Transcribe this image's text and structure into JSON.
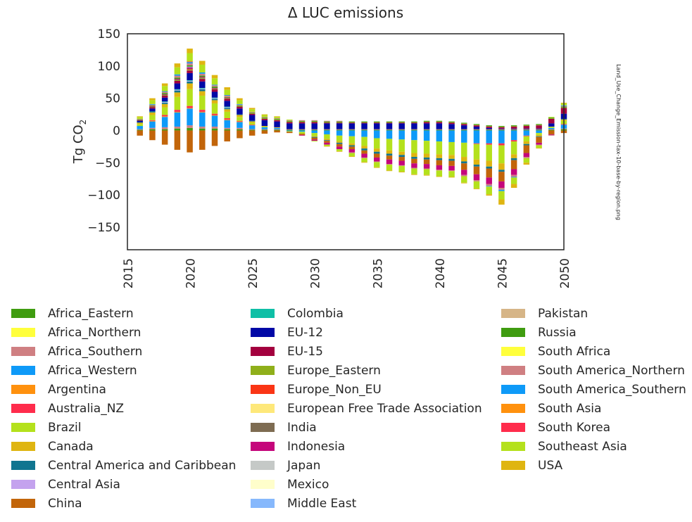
{
  "chart_data": {
    "type": "bar",
    "stacked": true,
    "title": "Δ LUC emissions",
    "ylabel_main": "Tg CO",
    "ylabel_sub": "2",
    "side_label": "Land_Use_Change_Emission-tax-10-base-by-region.png",
    "ylim": [
      -185,
      150
    ],
    "yticks": [
      {
        "v": 150,
        "label": "150"
      },
      {
        "v": 100,
        "label": "100"
      },
      {
        "v": 50,
        "label": "50"
      },
      {
        "v": 0,
        "label": "0"
      },
      {
        "v": -50,
        "label": "−50"
      },
      {
        "v": -100,
        "label": "−100"
      },
      {
        "v": -150,
        "label": "−150"
      }
    ],
    "x": [
      2016,
      2017,
      2018,
      2019,
      2020,
      2021,
      2022,
      2023,
      2024,
      2025,
      2026,
      2027,
      2028,
      2029,
      2030,
      2031,
      2032,
      2033,
      2034,
      2035,
      2036,
      2037,
      2038,
      2039,
      2040,
      2041,
      2042,
      2043,
      2044,
      2045,
      2046,
      2047,
      2048,
      2049,
      2050
    ],
    "xticks": [
      2015,
      2020,
      2025,
      2030,
      2035,
      2040,
      2045,
      2050
    ],
    "grid": false,
    "legend_position": "below",
    "series": [
      {
        "name": "Africa_Eastern",
        "color": "#3f9c10",
        "values": [
          1,
          2,
          2,
          3,
          4,
          3,
          3,
          2,
          2,
          1,
          1,
          1,
          1,
          1,
          1,
          1,
          1,
          1,
          1,
          1,
          1,
          1,
          1,
          1,
          1,
          1,
          1,
          1,
          1,
          1,
          1,
          1,
          1,
          1,
          2
        ]
      },
      {
        "name": "Africa_Northern",
        "color": "#ffff3c",
        "values": [
          0,
          0,
          0,
          0,
          0,
          0,
          0,
          0,
          0,
          0,
          0,
          0,
          0,
          0,
          0,
          0,
          0,
          0,
          0,
          0,
          0,
          0,
          0,
          0,
          0,
          0,
          0,
          0,
          0,
          0,
          0,
          0,
          0,
          0,
          0
        ]
      },
      {
        "name": "Africa_Southern",
        "color": "#cf7f82",
        "values": [
          1,
          2,
          3,
          3,
          4,
          3,
          3,
          2,
          2,
          1,
          1,
          1,
          1,
          1,
          1,
          1,
          1,
          1,
          1,
          1,
          1,
          1,
          1,
          1,
          1,
          1,
          1,
          1,
          1,
          1,
          1,
          1,
          1,
          1,
          1
        ]
      },
      {
        "name": "Africa_Western",
        "color": "#0e9af8",
        "values": [
          5,
          10,
          16,
          22,
          26,
          22,
          17,
          12,
          9,
          6,
          3,
          2,
          -1,
          -2,
          -4,
          -6,
          -8,
          -9,
          -10,
          -12,
          -13,
          -14,
          -15,
          -16,
          -17,
          -18,
          -19,
          -20,
          -20,
          -20,
          -15,
          -8,
          -4,
          2,
          6
        ]
      },
      {
        "name": "Argentina",
        "color": "#ff910e",
        "values": [
          0,
          1,
          1,
          1,
          1,
          1,
          1,
          1,
          1,
          0,
          0,
          0,
          0,
          0,
          0,
          0,
          0,
          0,
          0,
          0,
          0,
          0,
          0,
          0,
          0,
          0,
          0,
          0,
          0,
          0,
          0,
          0,
          0,
          0,
          0
        ]
      },
      {
        "name": "Australia_NZ",
        "color": "#ff2c4c",
        "values": [
          0,
          1,
          2,
          3,
          3,
          3,
          2,
          2,
          1,
          1,
          0,
          0,
          0,
          0,
          0,
          0,
          0,
          0,
          0,
          0,
          0,
          0,
          0,
          0,
          0,
          0,
          0,
          -1,
          -2,
          -3,
          -2,
          -1,
          0,
          0,
          1
        ]
      },
      {
        "name": "Brazil",
        "color": "#b4e11c",
        "values": [
          3,
          8,
          12,
          20,
          26,
          22,
          16,
          10,
          6,
          3,
          1,
          0,
          -1,
          -3,
          -5,
          -7,
          -9,
          -11,
          -14,
          -16,
          -18,
          -19,
          -20,
          -20,
          -20,
          -20,
          -22,
          -24,
          -25,
          -28,
          -20,
          -8,
          -3,
          2,
          5
        ]
      },
      {
        "name": "Canada",
        "color": "#dfb511",
        "values": [
          2,
          4,
          5,
          7,
          9,
          7,
          5,
          4,
          3,
          2,
          1,
          1,
          0,
          0,
          -1,
          -2,
          -2,
          -3,
          -4,
          -5,
          -5,
          -5,
          -6,
          -6,
          -6,
          -6,
          -7,
          -8,
          -9,
          -10,
          -6,
          -4,
          -2,
          0,
          2
        ]
      },
      {
        "name": "Central America and Caribbean",
        "color": "#107590",
        "values": [
          1,
          2,
          2,
          3,
          3,
          3,
          2,
          2,
          1,
          1,
          0,
          0,
          0,
          0,
          -1,
          -1,
          -2,
          -2,
          -3,
          -3,
          -3,
          -3,
          -3,
          -3,
          -3,
          -3,
          -3,
          -3,
          -3,
          -3,
          -3,
          -2,
          -1,
          0,
          1
        ]
      },
      {
        "name": "Central Asia",
        "color": "#c4a2ee",
        "values": [
          0,
          0,
          1,
          1,
          1,
          1,
          1,
          1,
          0,
          0,
          0,
          0,
          0,
          0,
          0,
          0,
          0,
          0,
          0,
          0,
          0,
          0,
          0,
          0,
          0,
          0,
          0,
          0,
          0,
          0,
          0,
          0,
          0,
          0,
          0
        ]
      },
      {
        "name": "China",
        "color": "#c2650a",
        "values": [
          -8,
          -15,
          -22,
          -30,
          -34,
          -30,
          -24,
          -17,
          -12,
          -8,
          -5,
          -3,
          -2,
          -2,
          -3,
          -3,
          -4,
          -4,
          -5,
          -6,
          -6,
          -6,
          -7,
          -7,
          -8,
          -8,
          -10,
          -12,
          -14,
          -15,
          -14,
          -12,
          -9,
          -6,
          -4
        ]
      },
      {
        "name": "Colombia",
        "color": "#0fbfa6",
        "values": [
          0,
          0,
          1,
          1,
          1,
          1,
          1,
          1,
          0,
          0,
          0,
          0,
          0,
          0,
          0,
          0,
          0,
          0,
          0,
          0,
          0,
          0,
          0,
          0,
          0,
          0,
          0,
          0,
          0,
          0,
          0,
          0,
          0,
          0,
          0
        ]
      },
      {
        "name": "EU-12",
        "color": "#0008a6",
        "values": [
          2,
          4,
          6,
          9,
          11,
          10,
          9,
          9,
          9,
          9,
          9,
          9,
          9,
          9,
          9,
          9,
          9,
          9,
          9,
          9,
          9,
          9,
          9,
          9,
          9,
          8,
          6,
          4,
          2,
          1,
          1,
          1,
          1,
          5,
          8
        ]
      },
      {
        "name": "EU-15",
        "color": "#a3003e",
        "values": [
          1,
          2,
          3,
          4,
          4,
          4,
          4,
          3,
          3,
          2,
          2,
          2,
          2,
          2,
          2,
          1,
          1,
          1,
          1,
          1,
          1,
          1,
          1,
          2,
          2,
          2,
          2,
          2,
          2,
          2,
          3,
          4,
          5,
          7,
          9
        ]
      },
      {
        "name": "Europe_Eastern",
        "color": "#8faf1a",
        "values": [
          0,
          1,
          1,
          1,
          1,
          1,
          1,
          1,
          1,
          1,
          1,
          1,
          1,
          1,
          1,
          1,
          1,
          1,
          1,
          1,
          1,
          1,
          1,
          1,
          1,
          1,
          1,
          1,
          1,
          1,
          1,
          1,
          1,
          1,
          1
        ]
      },
      {
        "name": "Europe_Non_EU",
        "color": "#fa3515",
        "values": [
          0,
          0,
          0,
          0,
          1,
          0,
          0,
          0,
          0,
          0,
          0,
          0,
          0,
          0,
          0,
          0,
          0,
          0,
          0,
          0,
          0,
          0,
          0,
          0,
          0,
          0,
          0,
          0,
          0,
          0,
          0,
          0,
          0,
          0,
          0
        ]
      },
      {
        "name": "European Free Trade Association",
        "color": "#fee87a",
        "values": [
          0,
          0,
          0,
          0,
          0,
          0,
          0,
          0,
          0,
          0,
          0,
          0,
          0,
          0,
          0,
          0,
          0,
          0,
          0,
          0,
          0,
          0,
          0,
          0,
          0,
          0,
          0,
          0,
          0,
          0,
          0,
          0,
          0,
          0,
          0
        ]
      },
      {
        "name": "India",
        "color": "#7e6c52",
        "values": [
          0,
          0,
          0,
          1,
          1,
          1,
          0,
          0,
          0,
          0,
          0,
          0,
          0,
          0,
          0,
          0,
          0,
          0,
          0,
          0,
          0,
          0,
          0,
          0,
          0,
          0,
          0,
          0,
          0,
          0,
          0,
          0,
          0,
          0,
          0
        ]
      },
      {
        "name": "Indonesia",
        "color": "#c5067b",
        "values": [
          0,
          1,
          1,
          1,
          2,
          1,
          1,
          1,
          0,
          0,
          0,
          0,
          0,
          -1,
          -2,
          -3,
          -4,
          -5,
          -6,
          -6,
          -7,
          -7,
          -7,
          -7,
          -7,
          -7,
          -8,
          -9,
          -10,
          -10,
          -9,
          -6,
          -3,
          -1,
          0
        ]
      },
      {
        "name": "Japan",
        "color": "#c5c9c7",
        "values": [
          0,
          0,
          0,
          0,
          0,
          0,
          0,
          0,
          0,
          0,
          0,
          0,
          0,
          0,
          0,
          0,
          0,
          0,
          0,
          0,
          0,
          0,
          0,
          0,
          0,
          0,
          0,
          0,
          0,
          0,
          0,
          0,
          0,
          0,
          0
        ]
      },
      {
        "name": "Mexico",
        "color": "#fffecb",
        "values": [
          0,
          0,
          0,
          0,
          0,
          0,
          0,
          0,
          0,
          0,
          0,
          0,
          0,
          0,
          0,
          0,
          0,
          0,
          0,
          0,
          0,
          0,
          0,
          0,
          0,
          0,
          0,
          0,
          0,
          0,
          0,
          0,
          0,
          0,
          0
        ]
      },
      {
        "name": "Middle East",
        "color": "#86b8fc",
        "values": [
          0,
          0,
          0,
          0,
          1,
          0,
          0,
          0,
          0,
          0,
          0,
          0,
          0,
          0,
          0,
          0,
          0,
          0,
          0,
          0,
          0,
          0,
          0,
          0,
          0,
          0,
          0,
          0,
          0,
          0,
          0,
          0,
          0,
          0,
          0
        ]
      },
      {
        "name": "Pakistan",
        "color": "#d6b587",
        "values": [
          0,
          0,
          0,
          0,
          0,
          0,
          0,
          0,
          0,
          0,
          0,
          0,
          0,
          0,
          0,
          0,
          0,
          0,
          0,
          0,
          0,
          0,
          0,
          0,
          0,
          0,
          0,
          0,
          0,
          0,
          0,
          0,
          0,
          0,
          0
        ]
      },
      {
        "name": "Russia",
        "color": "#3f9c10",
        "values": [
          1,
          1,
          2,
          2,
          2,
          2,
          2,
          1,
          1,
          1,
          1,
          1,
          1,
          1,
          1,
          1,
          1,
          1,
          1,
          1,
          1,
          1,
          1,
          1,
          1,
          1,
          1,
          1,
          1,
          1,
          1,
          1,
          1,
          1,
          1
        ]
      },
      {
        "name": "South Africa",
        "color": "#ffff3c",
        "values": [
          0,
          0,
          0,
          0,
          0,
          0,
          0,
          0,
          0,
          0,
          0,
          0,
          0,
          0,
          0,
          0,
          0,
          0,
          0,
          0,
          0,
          0,
          0,
          0,
          0,
          0,
          0,
          0,
          0,
          0,
          0,
          0,
          0,
          0,
          0
        ]
      },
      {
        "name": "South America_Northern",
        "color": "#cf7f82",
        "values": [
          1,
          1,
          2,
          3,
          3,
          3,
          2,
          2,
          1,
          1,
          1,
          1,
          1,
          1,
          1,
          1,
          1,
          -1,
          -1,
          -1,
          -1,
          -1,
          -1,
          -1,
          -1,
          -1,
          -2,
          -2,
          -3,
          -3,
          -3,
          -2,
          -1,
          -1,
          1
        ]
      },
      {
        "name": "South America_Southern",
        "color": "#0e9af8",
        "values": [
          0,
          1,
          1,
          2,
          2,
          2,
          1,
          1,
          1,
          0,
          0,
          0,
          0,
          0,
          0,
          0,
          0,
          0,
          0,
          0,
          0,
          0,
          0,
          0,
          0,
          0,
          0,
          0,
          -1,
          -2,
          -1,
          0,
          0,
          0,
          1
        ]
      },
      {
        "name": "South Asia",
        "color": "#ff910e",
        "values": [
          0,
          0,
          0,
          0,
          0,
          0,
          0,
          0,
          0,
          0,
          0,
          0,
          0,
          0,
          0,
          0,
          0,
          0,
          0,
          0,
          0,
          0,
          0,
          0,
          0,
          0,
          0,
          0,
          0,
          0,
          0,
          0,
          0,
          0,
          0
        ]
      },
      {
        "name": "South Korea",
        "color": "#ff2c4c",
        "values": [
          0,
          0,
          0,
          0,
          1,
          0,
          0,
          0,
          0,
          0,
          0,
          0,
          0,
          0,
          0,
          0,
          0,
          0,
          0,
          0,
          0,
          0,
          0,
          0,
          0,
          0,
          0,
          0,
          0,
          0,
          0,
          0,
          0,
          0,
          0
        ]
      },
      {
        "name": "Southeast Asia",
        "color": "#b4e11c",
        "values": [
          3,
          6,
          8,
          11,
          13,
          12,
          10,
          8,
          6,
          4,
          3,
          2,
          1,
          0,
          -1,
          -2,
          -3,
          -5,
          -6,
          -8,
          -9,
          -9,
          -9,
          -9,
          -9,
          -9,
          -10,
          -11,
          -12,
          -13,
          -10,
          -7,
          -4,
          1,
          3
        ]
      },
      {
        "name": "USA",
        "color": "#dfb511",
        "values": [
          1,
          3,
          4,
          6,
          7,
          6,
          5,
          4,
          3,
          2,
          1,
          1,
          0,
          0,
          0,
          -1,
          -1,
          -1,
          -1,
          -1,
          -1,
          -1,
          -1,
          -1,
          -1,
          -1,
          -1,
          -1,
          -2,
          -8,
          -6,
          -3,
          -1,
          0,
          1
        ]
      }
    ]
  }
}
